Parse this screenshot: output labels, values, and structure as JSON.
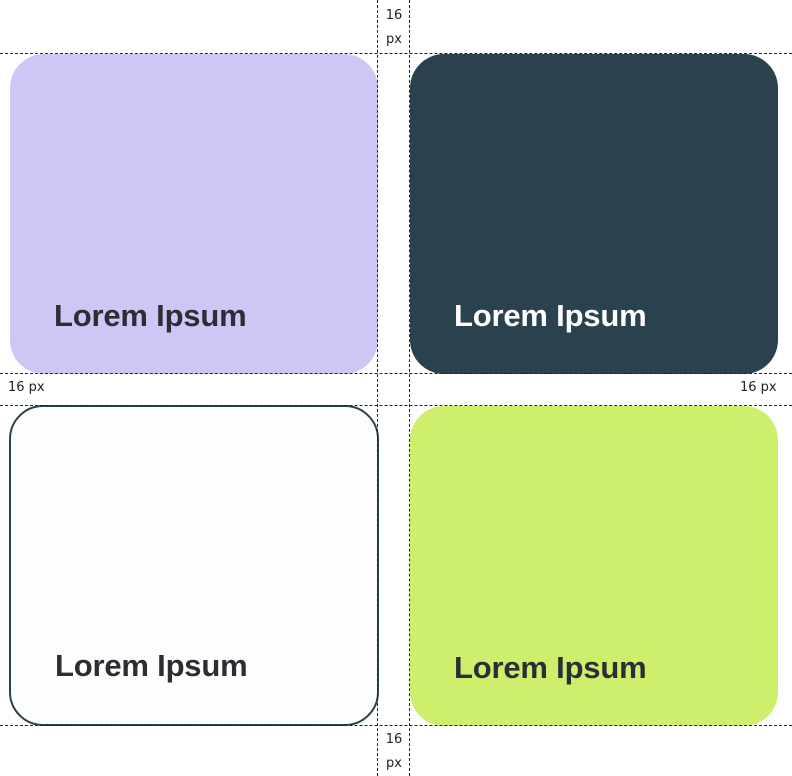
{
  "cards": [
    {
      "label": "Lorem Ipsum",
      "background": "#D0C6F5",
      "text_color": "#2D2D33",
      "border_color": ""
    },
    {
      "label": "Lorem Ipsum",
      "background": "#2A414E",
      "text_color": "#FFFFFF",
      "border_color": ""
    },
    {
      "label": "Lorem Ipsum",
      "background": "#FDFDFE",
      "text_color": "#2D2D33",
      "border_color": "#2A414E"
    },
    {
      "label": "Lorem Ipsum",
      "background": "#CEEF6B",
      "text_color": "#2D2D33",
      "border_color": ""
    }
  ],
  "spacing": {
    "top_value": "16",
    "top_unit": "px",
    "left": "16 px",
    "right": "16 px",
    "bottom_value": "16",
    "bottom_unit": "px"
  }
}
